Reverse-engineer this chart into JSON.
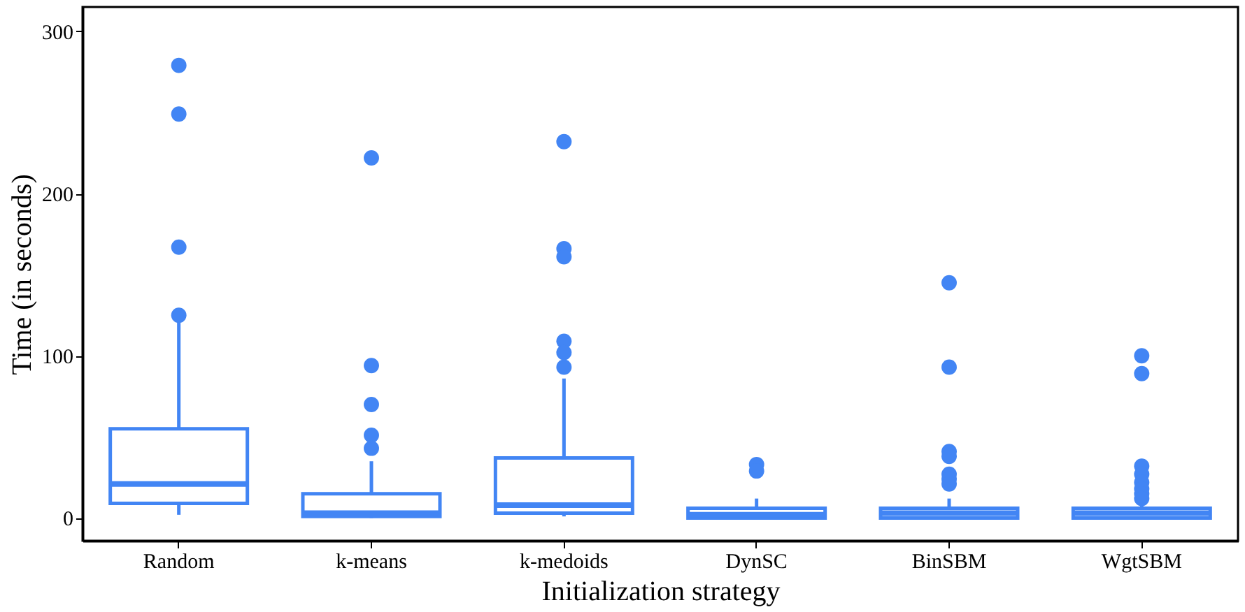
{
  "chart_data": {
    "type": "box",
    "xlabel": "Initialization strategy",
    "ylabel": "Time (in seconds)",
    "categories": [
      "Random",
      "k-means",
      "k-medoids",
      "DynSC",
      "BinSBM",
      "WgtSBM"
    ],
    "boxes": [
      {
        "low": 2,
        "q1": 9,
        "median": 21,
        "q3": 55,
        "high": 122,
        "outliers": [
          279,
          249,
          167,
          125
        ]
      },
      {
        "low": 0,
        "q1": 1,
        "median": 3,
        "q3": 15,
        "high": 35,
        "outliers": [
          222,
          94,
          70,
          51,
          43
        ]
      },
      {
        "low": 1,
        "q1": 3,
        "median": 8,
        "q3": 37,
        "high": 86,
        "outliers": [
          232,
          166,
          161,
          109,
          102,
          93
        ]
      },
      {
        "low": 0,
        "q1": 0,
        "median": 2,
        "q3": 6,
        "high": 12,
        "outliers": [
          33,
          29
        ]
      },
      {
        "low": 0,
        "q1": 0,
        "median": 3,
        "q3": 6,
        "high": 12,
        "outliers": [
          145,
          93,
          41,
          38,
          27,
          24,
          21
        ]
      },
      {
        "low": 0,
        "q1": 0,
        "median": 3,
        "q3": 6,
        "high": 9,
        "outliers": [
          100,
          89,
          32,
          27,
          22,
          18,
          15,
          12
        ]
      }
    ],
    "color": "#4285f4",
    "ylim": [
      -14,
      315
    ],
    "yticks": [
      0,
      100,
      200,
      300
    ],
    "grid": false
  }
}
